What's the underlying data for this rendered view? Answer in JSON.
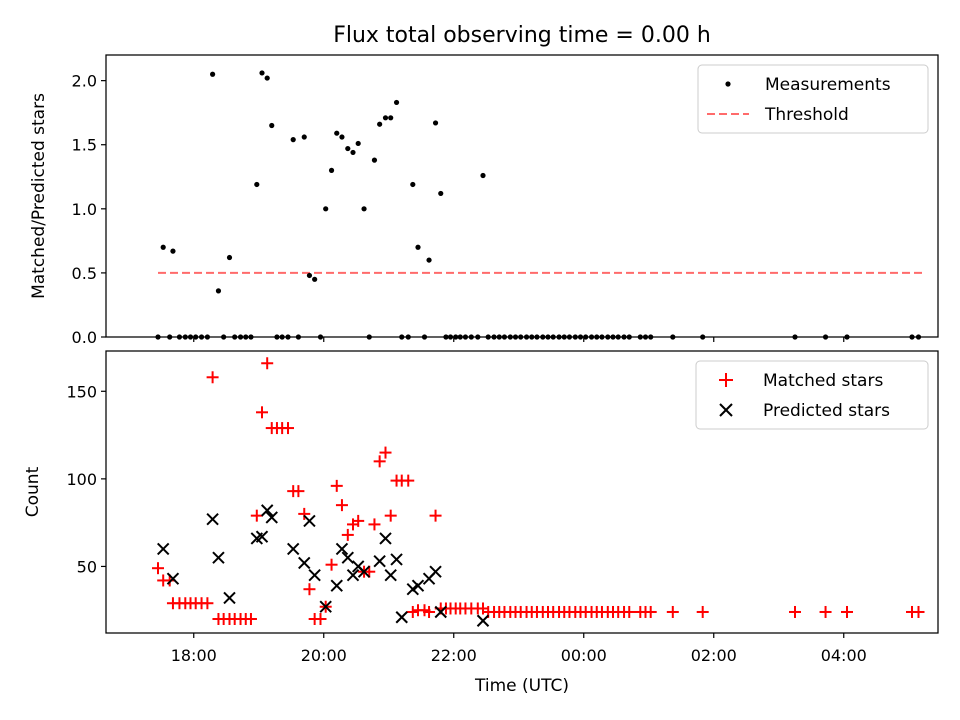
{
  "chart_data": [
    {
      "type": "scatter",
      "title": "Flux total observing time = 0.00 h",
      "xlabel": "",
      "ylabel": "Matched/Predicted stars",
      "xlim": [
        16.65,
        29.45
      ],
      "ylim": [
        0,
        2.2
      ],
      "yticks": [
        0.0,
        0.5,
        1.0,
        1.5,
        2.0
      ],
      "ytick_labels": [
        "0.0",
        "0.5",
        "1.0",
        "1.5",
        "2.0"
      ],
      "xticks": [
        18,
        20,
        22,
        24,
        26,
        28
      ],
      "legend": {
        "position": "top-right",
        "entries": [
          "Measurements",
          "Threshold"
        ]
      },
      "colors": {
        "measurements": "#000000",
        "threshold": "#ff6b6b"
      },
      "threshold": {
        "name": "Threshold",
        "y": 0.5,
        "x_range": [
          17.45,
          29.25
        ]
      },
      "measurements": {
        "name": "Measurements",
        "x": [
          17.45,
          17.53,
          17.63,
          17.68,
          17.78,
          17.87,
          17.95,
          18.03,
          18.12,
          18.21,
          18.29,
          18.38,
          18.46,
          18.55,
          18.63,
          18.72,
          18.8,
          18.88,
          18.97,
          19.05,
          19.13,
          19.2,
          19.28,
          19.36,
          19.45,
          19.53,
          19.61,
          19.7,
          19.78,
          19.86,
          19.95,
          20.03,
          20.12,
          20.2,
          20.28,
          20.37,
          20.45,
          20.53,
          20.62,
          20.7,
          20.78,
          20.86,
          20.95,
          21.03,
          21.12,
          21.2,
          21.3,
          21.37,
          21.45,
          21.55,
          21.62,
          21.72,
          21.8,
          21.88,
          21.95,
          22.03,
          22.1,
          22.18,
          22.27,
          22.37,
          22.45,
          22.53,
          22.62,
          22.7,
          22.78,
          22.87,
          22.95,
          23.03,
          23.12,
          23.2,
          23.28,
          23.37,
          23.45,
          23.53,
          23.62,
          23.7,
          23.78,
          23.87,
          23.95,
          24.03,
          24.12,
          24.2,
          24.28,
          24.37,
          24.45,
          24.53,
          24.62,
          24.7,
          24.87,
          24.95,
          25.03,
          25.37,
          25.83,
          27.25,
          27.72,
          28.05,
          29.05,
          29.15
        ],
        "y": [
          0.0,
          0.7,
          0.0,
          0.67,
          0.0,
          0.0,
          0.0,
          0.0,
          0.0,
          0.0,
          2.05,
          0.36,
          0.0,
          0.62,
          0.0,
          0.0,
          0.0,
          0.0,
          1.19,
          2.06,
          2.02,
          1.65,
          0.0,
          0.0,
          0.0,
          1.54,
          0.0,
          1.56,
          0.48,
          0.45,
          0.0,
          1.0,
          1.3,
          1.59,
          1.56,
          1.47,
          1.44,
          1.51,
          1.0,
          0.0,
          1.38,
          1.66,
          1.71,
          1.71,
          1.83,
          0.0,
          0.0,
          1.19,
          0.7,
          0.0,
          0.6,
          1.67,
          1.12,
          0.0,
          0.0,
          0.0,
          0.0,
          0.0,
          0.0,
          0.0,
          1.26,
          0.0,
          0.0,
          0.0,
          0.0,
          0.0,
          0.0,
          0.0,
          0.0,
          0.0,
          0.0,
          0.0,
          0.0,
          0.0,
          0.0,
          0.0,
          0.0,
          0.0,
          0.0,
          0.0,
          0.0,
          0.0,
          0.0,
          0.0,
          0.0,
          0.0,
          0.0,
          0.0,
          0.0,
          0.0,
          0.0,
          0.0,
          0.0,
          0.0,
          0.0,
          0.0,
          0.0,
          0.0
        ]
      }
    },
    {
      "type": "scatter",
      "title": "",
      "xlabel": "Time (UTC)",
      "ylabel": "Count",
      "xlim": [
        16.65,
        29.45
      ],
      "ylim": [
        12,
        173
      ],
      "yticks": [
        50,
        100,
        150
      ],
      "ytick_labels": [
        "50",
        "100",
        "150"
      ],
      "xticks": [
        18,
        20,
        22,
        24,
        26,
        28
      ],
      "xtick_labels": [
        "18:00",
        "20:00",
        "22:00",
        "00:00",
        "02:00",
        "04:00"
      ],
      "legend": {
        "position": "top-right",
        "entries": [
          "Matched stars",
          "Predicted stars"
        ]
      },
      "colors": {
        "matched": "#ff0000",
        "predicted": "#000000"
      },
      "series": [
        {
          "name": "Matched stars",
          "marker": "+",
          "x": [
            17.45,
            17.53,
            17.63,
            17.68,
            17.78,
            17.87,
            17.95,
            18.03,
            18.12,
            18.21,
            18.29,
            18.38,
            18.46,
            18.55,
            18.63,
            18.72,
            18.8,
            18.88,
            18.97,
            19.05,
            19.13,
            19.2,
            19.28,
            19.36,
            19.45,
            19.53,
            19.61,
            19.7,
            19.78,
            19.86,
            19.95,
            20.03,
            20.12,
            20.2,
            20.28,
            20.37,
            20.45,
            20.53,
            20.62,
            20.7,
            20.78,
            20.86,
            20.95,
            21.03,
            21.12,
            21.2,
            21.3,
            21.37,
            21.45,
            21.55,
            21.62,
            21.72,
            21.8,
            21.88,
            21.95,
            22.03,
            22.1,
            22.18,
            22.27,
            22.37,
            22.45,
            22.53,
            22.62,
            22.7,
            22.78,
            22.87,
            22.95,
            23.03,
            23.12,
            23.2,
            23.28,
            23.37,
            23.45,
            23.53,
            23.62,
            23.7,
            23.78,
            23.87,
            23.95,
            24.03,
            24.12,
            24.2,
            24.28,
            24.37,
            24.45,
            24.53,
            24.62,
            24.7,
            24.87,
            24.95,
            25.03,
            25.37,
            25.83,
            27.25,
            27.72,
            28.05,
            29.05,
            29.15
          ],
          "y": [
            49,
            42,
            42,
            29,
            29,
            29,
            29,
            29,
            29,
            29,
            158,
            20,
            20,
            20,
            20,
            20,
            20,
            20,
            79,
            138,
            166,
            129,
            129,
            129,
            129,
            93,
            93,
            80,
            37,
            20,
            20,
            27,
            51,
            96,
            85,
            68,
            74,
            76,
            47,
            47,
            74,
            110,
            115,
            79,
            99,
            99,
            99,
            24,
            25,
            25,
            24,
            79,
            26,
            26,
            26,
            26,
            26,
            26,
            26,
            26,
            26,
            24,
            24,
            24,
            24,
            24,
            24,
            24,
            24,
            24,
            24,
            24,
            24,
            24,
            24,
            24,
            24,
            24,
            24,
            24,
            24,
            24,
            24,
            24,
            24,
            24,
            24,
            24,
            24,
            24,
            24,
            24,
            24,
            24,
            24,
            24,
            24,
            24
          ]
        },
        {
          "name": "Predicted stars",
          "marker": "x",
          "x": [
            17.53,
            17.68,
            18.29,
            18.38,
            18.55,
            18.97,
            19.05,
            19.13,
            19.2,
            19.53,
            19.7,
            19.78,
            19.86,
            20.03,
            20.2,
            20.28,
            20.37,
            20.45,
            20.53,
            20.62,
            20.86,
            20.95,
            21.03,
            21.12,
            21.2,
            21.37,
            21.45,
            21.62,
            21.72,
            21.8,
            22.45
          ],
          "y": [
            60,
            43,
            77,
            55,
            32,
            66,
            67,
            82,
            78,
            60,
            52,
            76,
            45,
            27,
            39,
            60,
            55,
            45,
            50,
            47,
            53,
            66,
            45,
            54,
            21,
            37,
            39,
            43,
            47,
            24,
            19
          ]
        }
      ]
    }
  ]
}
